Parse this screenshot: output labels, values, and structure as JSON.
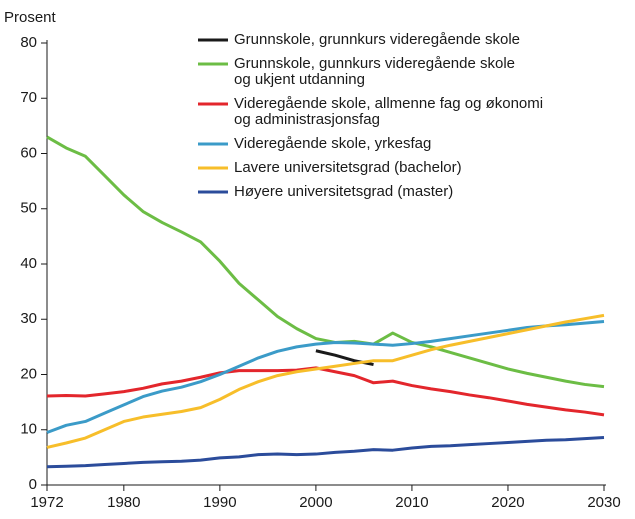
{
  "chart_data": {
    "type": "line",
    "y_label": "Prosent",
    "x": [
      1972,
      1974,
      1976,
      1978,
      1980,
      1982,
      1984,
      1986,
      1988,
      1990,
      1992,
      1994,
      1996,
      1998,
      2000,
      2002,
      2004,
      2006,
      2008,
      2010,
      2012,
      2014,
      2016,
      2018,
      2020,
      2022,
      2024,
      2026,
      2028,
      2030
    ],
    "xlim": [
      1972,
      2030
    ],
    "xticks": [
      1972,
      1980,
      1990,
      2000,
      2010,
      2020,
      2030
    ],
    "ylim": [
      0,
      80
    ],
    "yticks": [
      0,
      10,
      20,
      30,
      40,
      50,
      60,
      70,
      80
    ],
    "grid": false,
    "legend": "upper right",
    "series": [
      {
        "name": "Grunnskole, grunnkurs videregående skole",
        "color": "#1a1a1a",
        "values": [
          null,
          null,
          null,
          null,
          null,
          null,
          null,
          null,
          null,
          null,
          null,
          null,
          null,
          null,
          24.3,
          23.5,
          22.5,
          21.8,
          null,
          null,
          null,
          null,
          null,
          null,
          null,
          null,
          null,
          null,
          null,
          null
        ]
      },
      {
        "name": "Grunnskole, gunnkurs videregående skole\nog ukjent utdanning",
        "color": "#6cbd45",
        "values": [
          63,
          61,
          59.5,
          56,
          52.5,
          49.5,
          47.5,
          45.8,
          44,
          40.5,
          36.5,
          33.5,
          30.5,
          28.3,
          26.5,
          25.8,
          26,
          25.5,
          27.5,
          25.8,
          25,
          24,
          23,
          22,
          21,
          20.2,
          19.5,
          18.8,
          18.2,
          17.8
        ]
      },
      {
        "name": "Videregående skole, allmenne fag og økonomi\nog administrasjonsfag",
        "color": "#e3262c",
        "values": [
          16.1,
          16.2,
          16.1,
          16.5,
          16.9,
          17.5,
          18.3,
          18.8,
          19.5,
          20.3,
          20.7,
          20.7,
          20.7,
          20.8,
          21.2,
          20.5,
          19.8,
          18.5,
          18.8,
          18,
          17.4,
          16.9,
          16.3,
          15.8,
          15.2,
          14.6,
          14.1,
          13.6,
          13.2,
          12.7
        ]
      },
      {
        "name": "Videregående skole, yrkesfag",
        "color": "#3b9bc8",
        "values": [
          9.5,
          10.8,
          11.5,
          13,
          14.5,
          16,
          17,
          17.7,
          18.7,
          20,
          21.5,
          23,
          24.2,
          25,
          25.5,
          25.8,
          25.7,
          25.5,
          25.3,
          25.6,
          26,
          26.5,
          27,
          27.5,
          28,
          28.5,
          28.8,
          29,
          29.3,
          29.6
        ]
      },
      {
        "name": "Lavere universitetsgrad (bachelor)",
        "color": "#f7be2a",
        "values": [
          6.8,
          7.6,
          8.5,
          10,
          11.5,
          12.3,
          12.8,
          13.3,
          14,
          15.5,
          17.3,
          18.7,
          19.8,
          20.5,
          21,
          21.5,
          22,
          22.5,
          22.5,
          23.5,
          24.5,
          25.3,
          26,
          26.7,
          27.4,
          28.1,
          28.8,
          29.5,
          30.1,
          30.7
        ]
      },
      {
        "name": "Høyere universitetsgrad (master)",
        "color": "#2b4c9b",
        "values": [
          3.3,
          3.4,
          3.5,
          3.7,
          3.9,
          4.1,
          4.2,
          4.3,
          4.5,
          4.9,
          5.1,
          5.5,
          5.6,
          5.5,
          5.6,
          5.9,
          6.1,
          6.4,
          6.3,
          6.7,
          7,
          7.1,
          7.3,
          7.5,
          7.7,
          7.9,
          8.1,
          8.2,
          8.4,
          8.6
        ]
      }
    ]
  }
}
